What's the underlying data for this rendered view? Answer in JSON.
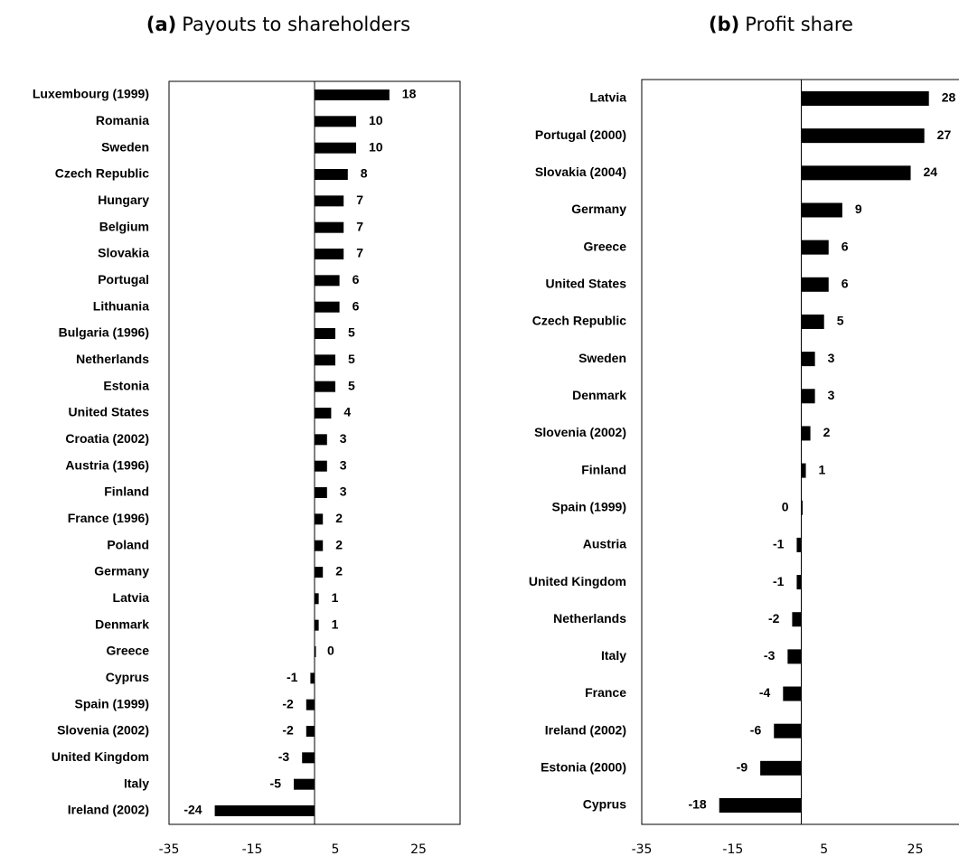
{
  "chart_data": [
    {
      "type": "barh",
      "panel": "(a)",
      "title": "Payouts to shareholders",
      "categories": [
        "Luxembourg (1999)",
        "Romania",
        "Sweden",
        "Czech Republic",
        "Hungary",
        "Belgium",
        "Slovakia",
        "Portugal",
        "Lithuania",
        "Bulgaria (1996)",
        "Netherlands",
        "Estonia",
        "United States",
        "Croatia (2002)",
        "Austria (1996)",
        "Finland",
        "France (1996)",
        "Poland",
        "Germany",
        "Latvia",
        "Denmark",
        "Greece",
        "Cyprus",
        "Spain (1999)",
        "Slovenia (2002)",
        "United Kingdom",
        "Italy",
        "Ireland (2002)"
      ],
      "values": [
        18,
        10,
        10,
        8,
        7,
        7,
        7,
        6,
        6,
        5,
        5,
        5,
        4,
        3,
        3,
        3,
        2,
        2,
        2,
        1,
        1,
        0,
        -1,
        -2,
        -2,
        -3,
        -5,
        -24
      ],
      "color": "#000000",
      "xlim": [
        -35,
        35
      ],
      "xticks": [
        -35,
        -15,
        5,
        25
      ]
    },
    {
      "type": "barh",
      "panel": "(b)",
      "title": "Profit share",
      "categories": [
        "Latvia",
        "Portugal (2000)",
        "Slovakia (2004)",
        "Germany",
        "Greece",
        "United States",
        "Czech Republic",
        "Sweden",
        "Denmark",
        "Slovenia (2002)",
        "Finland",
        "Spain (1999)",
        "Austria",
        "United Kingdom",
        "Netherlands",
        "Italy",
        "France",
        "Ireland (2002)",
        "Estonia (2000)",
        "Cyprus"
      ],
      "values": [
        28,
        27,
        24,
        9,
        6,
        6,
        5,
        3,
        3,
        2,
        1,
        0,
        -1,
        -1,
        -2,
        -3,
        -4,
        -6,
        -9,
        -18
      ],
      "color": "#000000",
      "xlim": [
        -35,
        35
      ],
      "xticks": [
        -35,
        -15,
        5,
        25
      ]
    }
  ]
}
